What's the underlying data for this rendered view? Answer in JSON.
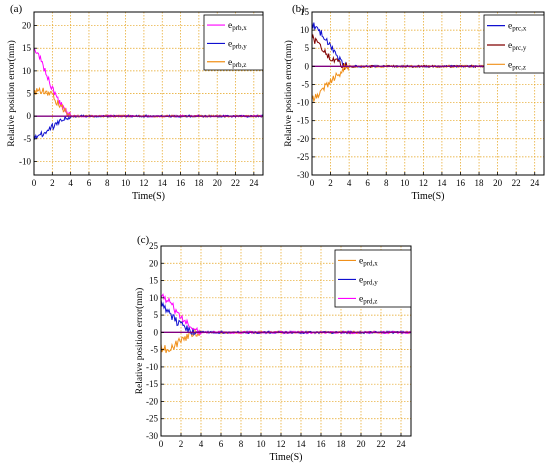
{
  "colors": {
    "magenta": "#ff00ff",
    "blue": "#1010d0",
    "orange": "#f0901a",
    "darkred": "#800000",
    "purple": "#800080",
    "grid": "#e5a21a"
  },
  "chart_data": [
    {
      "type": "line",
      "panel_label": "(a)",
      "xlabel": "Time(S)",
      "ylabel": "Relative position error(mm)",
      "xlim": [
        0,
        25
      ],
      "ylim": [
        -13,
        23
      ],
      "xticks": [
        0,
        2,
        4,
        6,
        8,
        10,
        12,
        14,
        16,
        18,
        20,
        22,
        24
      ],
      "yticks": [
        -10,
        -5,
        0,
        5,
        10,
        15,
        20
      ],
      "grid": true,
      "legend_position": "top-right",
      "series": [
        {
          "name_main": "e",
          "name_sub": "prb,x",
          "color": "magenta",
          "x": [
            0,
            0.5,
            1,
            1.5,
            2,
            2.5,
            3,
            3.5,
            4,
            5,
            25
          ],
          "y": [
            15.5,
            13.5,
            11,
            8.5,
            6,
            4,
            2.5,
            1,
            0,
            0,
            0
          ]
        },
        {
          "name_main": "e",
          "name_sub": "prb,y",
          "color": "blue",
          "x": [
            0,
            0.5,
            1,
            1.5,
            2,
            2.5,
            3,
            3.5,
            4,
            5,
            25
          ],
          "y": [
            -4.5,
            -4.5,
            -4,
            -3.5,
            -2.5,
            -1.5,
            -1,
            0,
            0,
            0,
            0
          ]
        },
        {
          "name_main": "e",
          "name_sub": "prb,z",
          "color": "orange",
          "x": [
            0,
            0.5,
            1,
            1.5,
            2,
            2.5,
            3,
            3.5,
            4,
            5,
            25
          ],
          "y": [
            5,
            6,
            5.5,
            5,
            4.5,
            3,
            2,
            1,
            0,
            0,
            0
          ]
        },
        {
          "name_main": "",
          "name_sub": "",
          "color": "purple",
          "x": [
            0,
            25
          ],
          "y": [
            0,
            0
          ]
        }
      ]
    },
    {
      "type": "line",
      "panel_label": "(b)",
      "xlabel": "Time(S)",
      "ylabel": "Relative position error(mm)",
      "xlim": [
        0,
        25
      ],
      "ylim": [
        -30,
        15
      ],
      "xticks": [
        0,
        2,
        4,
        6,
        8,
        10,
        12,
        14,
        16,
        18,
        20,
        22,
        24
      ],
      "yticks": [
        -30,
        -25,
        -20,
        -15,
        -10,
        -5,
        0,
        5,
        10,
        15
      ],
      "grid": true,
      "legend_position": "top-right",
      "series": [
        {
          "name_main": "e",
          "name_sub": "prc,x",
          "color": "blue",
          "x": [
            0,
            0.5,
            1,
            1.5,
            2,
            2.5,
            3,
            3.5,
            5,
            25
          ],
          "y": [
            11.5,
            10.5,
            9,
            7,
            5.5,
            4,
            2,
            0,
            0,
            0
          ]
        },
        {
          "name_main": "e",
          "name_sub": "prc,y",
          "color": "darkred",
          "x": [
            0,
            0.5,
            1,
            1.5,
            2,
            2.5,
            3,
            3.5,
            5,
            25
          ],
          "y": [
            8,
            6.5,
            5,
            3.5,
            2.5,
            1.5,
            0.5,
            0,
            0,
            0
          ]
        },
        {
          "name_main": "e",
          "name_sub": "prc,z",
          "color": "orange",
          "x": [
            0,
            0.5,
            1,
            1.5,
            2,
            2.5,
            3,
            3.5,
            5,
            25
          ],
          "y": [
            -9,
            -8.5,
            -7,
            -5.5,
            -4,
            -3,
            -2,
            0,
            0,
            0
          ]
        },
        {
          "name_main": "",
          "name_sub": "",
          "color": "purple",
          "x": [
            0,
            25
          ],
          "y": [
            0,
            0
          ]
        }
      ]
    },
    {
      "type": "line",
      "panel_label": "(c)",
      "xlabel": "Time(S)",
      "ylabel": "Relative position error(mm)",
      "xlim": [
        0,
        25
      ],
      "ylim": [
        -30,
        25
      ],
      "xticks": [
        0,
        2,
        4,
        6,
        8,
        10,
        12,
        14,
        16,
        18,
        20,
        22,
        24
      ],
      "yticks": [
        -30,
        -25,
        -20,
        -15,
        -10,
        -5,
        0,
        5,
        10,
        15,
        20,
        25
      ],
      "grid": true,
      "legend_position": "top-right",
      "series": [
        {
          "name_main": "e",
          "name_sub": "prd,x",
          "color": "orange",
          "x": [
            0,
            0.5,
            1,
            1.5,
            2,
            2.5,
            3,
            3.5,
            4,
            5,
            25
          ],
          "y": [
            -4.5,
            -5,
            -4.5,
            -3.5,
            -2.5,
            -1.5,
            -0.5,
            0,
            0,
            0,
            0
          ]
        },
        {
          "name_main": "e",
          "name_sub": "prd,y",
          "color": "blue",
          "x": [
            0,
            0.5,
            1,
            1.5,
            2,
            2.5,
            3,
            3.5,
            4,
            5,
            25
          ],
          "y": [
            9,
            7,
            5,
            3.5,
            2,
            1,
            0.5,
            0,
            0,
            0,
            0
          ]
        },
        {
          "name_main": "e",
          "name_sub": "prd,z",
          "color": "magenta",
          "x": [
            0,
            0.5,
            1,
            1.5,
            2,
            2.5,
            3,
            3.5,
            4,
            5,
            25
          ],
          "y": [
            11,
            9.5,
            8,
            6,
            4.5,
            3,
            1.5,
            0.5,
            0,
            0,
            0
          ]
        },
        {
          "name_main": "",
          "name_sub": "",
          "color": "purple",
          "x": [
            0,
            25
          ],
          "y": [
            0,
            0
          ]
        }
      ]
    }
  ]
}
